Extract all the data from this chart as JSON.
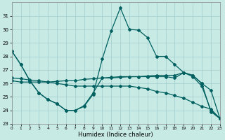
{
  "xlabel": "Humidex (Indice chaleur)",
  "background_color": "#c8eae4",
  "grid_color": "#a0cccc",
  "line_color": "#006060",
  "xlim": [
    0,
    23
  ],
  "ylim": [
    23,
    32
  ],
  "yticks": [
    23,
    24,
    25,
    26,
    27,
    28,
    29,
    30,
    31
  ],
  "xticks": [
    0,
    1,
    2,
    3,
    4,
    5,
    6,
    7,
    8,
    9,
    10,
    11,
    12,
    13,
    14,
    15,
    16,
    17,
    18,
    19,
    20,
    21,
    22,
    23
  ],
  "series": {
    "line1_x": [
      0,
      1,
      2,
      3,
      4,
      5,
      6,
      7,
      8,
      9,
      10,
      11,
      12,
      13,
      14,
      15,
      16,
      17,
      18,
      19,
      20,
      21,
      22,
      23
    ],
    "line1_y": [
      28.4,
      27.4,
      26.2,
      25.3,
      24.8,
      24.5,
      24.0,
      24.0,
      24.3,
      25.2,
      27.8,
      29.9,
      31.6,
      30.0,
      29.95,
      29.4,
      28.0,
      28.0,
      27.4,
      26.8,
      26.5,
      25.8,
      24.0,
      23.4
    ],
    "line2_x": [
      0,
      1,
      2,
      3,
      4,
      5,
      6,
      7,
      8,
      9,
      10,
      11,
      12,
      13,
      14,
      15,
      16,
      17,
      18,
      19,
      20,
      21,
      22,
      23
    ],
    "line2_y": [
      26.2,
      26.1,
      26.1,
      26.1,
      26.1,
      26.15,
      26.2,
      26.2,
      26.3,
      26.35,
      26.4,
      26.4,
      26.45,
      26.5,
      26.5,
      26.55,
      26.6,
      26.6,
      26.6,
      26.8,
      26.6,
      26.0,
      25.5,
      23.4
    ],
    "line3_x": [
      0,
      1,
      2,
      3,
      4,
      5,
      6,
      7,
      8,
      9,
      10,
      11,
      12,
      13,
      14,
      15,
      16,
      17,
      18,
      19,
      20,
      21,
      22,
      23
    ],
    "line3_y": [
      26.4,
      26.35,
      26.25,
      26.2,
      26.1,
      26.0,
      25.9,
      25.8,
      25.8,
      25.8,
      25.8,
      25.8,
      25.8,
      25.8,
      25.7,
      25.6,
      25.4,
      25.3,
      25.1,
      24.9,
      24.6,
      24.3,
      24.1,
      23.4
    ],
    "line4_x": [
      0,
      1,
      2,
      3,
      4,
      5,
      6,
      7,
      8,
      9,
      10,
      11,
      12,
      13,
      14,
      15,
      16,
      17,
      18,
      19,
      20,
      21,
      22,
      23
    ],
    "line4_y": [
      28.4,
      27.4,
      26.2,
      25.3,
      24.8,
      24.5,
      24.0,
      24.0,
      24.35,
      25.3,
      26.4,
      26.45,
      26.5,
      26.5,
      26.5,
      26.5,
      26.5,
      26.5,
      26.4,
      26.8,
      26.6,
      26.0,
      23.9,
      23.4
    ]
  }
}
